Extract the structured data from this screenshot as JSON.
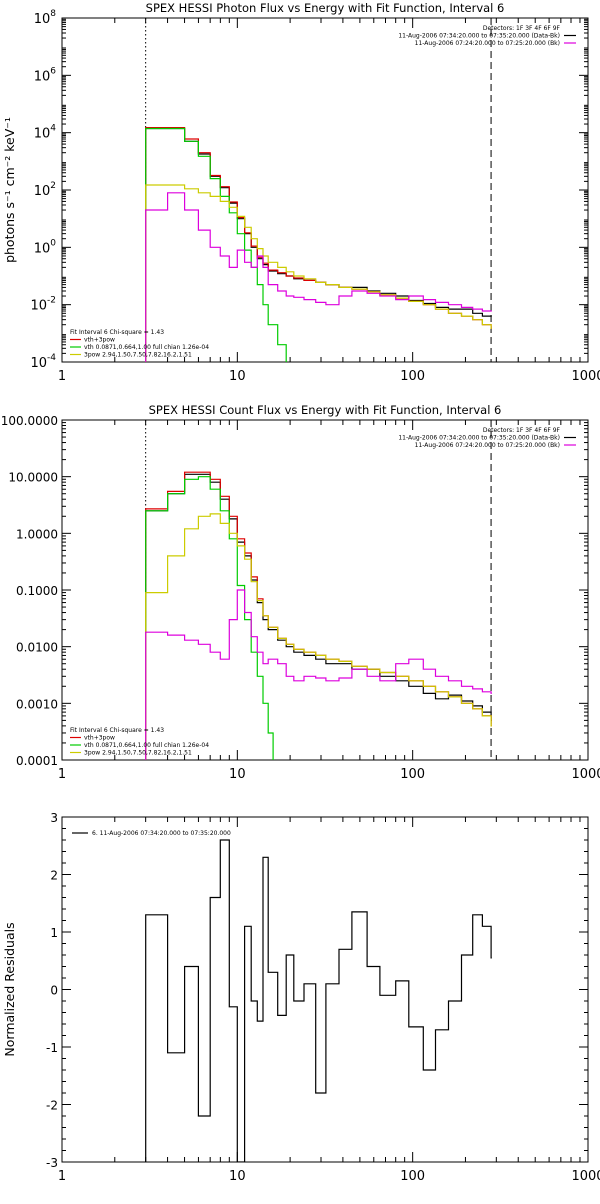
{
  "chart_data": [
    {
      "type": "line",
      "title": "SPEX HESSI Photon Flux vs Energy with Fit Function, Interval 6",
      "ylabel": "photons s⁻¹ cm⁻² keV⁻¹",
      "xscale": "log",
      "yscale": "log",
      "xlim": [
        1,
        1000
      ],
      "ylim": [
        0.0001,
        100000000
      ],
      "x_ticks": [
        1,
        10,
        100,
        1000
      ],
      "x_tick_labels": [
        "1",
        "10",
        "100",
        "1000"
      ],
      "y_ticks": [
        0.0001,
        0.01,
        1,
        100,
        10000,
        1000000,
        100000000
      ],
      "y_tick_labels": [
        {
          "base": "10",
          "exp": "-4"
        },
        {
          "base": "10",
          "exp": "-2"
        },
        {
          "base": "10",
          "exp": "0"
        },
        {
          "base": "10",
          "exp": "2"
        },
        {
          "base": "10",
          "exp": "4"
        },
        {
          "base": "10",
          "exp": "6"
        },
        {
          "base": "10",
          "exp": "8"
        }
      ],
      "vlines": [
        {
          "x": 3,
          "style": "dotted"
        },
        {
          "x": 280,
          "style": "dashed"
        }
      ],
      "legend_top": {
        "placement": "top-right",
        "lines": [
          {
            "text": "Detectors: 1F 3F 4F 6F 9F",
            "color": ""
          },
          {
            "text": "11-Aug-2006 07:34:20.000 to 07:35:20.000 (Data-Bk)",
            "color": "#000000"
          },
          {
            "text": "11-Aug-2006 07:24:20.000 to 07:25:20.000 (Bk)",
            "color": "#dd00dd"
          }
        ]
      },
      "legend_bottom": {
        "placement": "bottom-left",
        "lines": [
          {
            "text": "Fit Interval 6    Chi-square = 1.43",
            "color": ""
          },
          {
            "text": "vth+3pow",
            "color": "#dd0000"
          },
          {
            "text": "vth 0.0871,0.664,1.00  full chian 1.26e-04",
            "color": "#00cc00"
          },
          {
            "text": "3pow  2.94,1.50,7.50,7.82,16.2,1.51",
            "color": "#cccc00"
          }
        ]
      },
      "series": [
        {
          "color": "#000000",
          "x": [
            3,
            4,
            5,
            6,
            7,
            8,
            9,
            10,
            11,
            12,
            13,
            14,
            15,
            17,
            19,
            21,
            24,
            28,
            32,
            38,
            45,
            55,
            65,
            80,
            95,
            115,
            135,
            160,
            190,
            220,
            250,
            280
          ],
          "y": [
            14000,
            14000,
            5000,
            1800,
            300,
            120,
            35,
            10,
            3,
            1,
            0.4,
            0.25,
            0.15,
            0.12,
            0.1,
            0.08,
            0.07,
            0.06,
            0.05,
            0.04,
            0.04,
            0.03,
            0.025,
            0.02,
            0.014,
            0.011,
            0.008,
            0.007,
            0.007,
            0.005,
            0.004,
            0.004
          ]
        },
        {
          "color": "#dd0000",
          "x": [
            3,
            4,
            5,
            6,
            7,
            8,
            9,
            10,
            11,
            12,
            13,
            14,
            15,
            17,
            19,
            21,
            24,
            28,
            32,
            38,
            45,
            55,
            65,
            80,
            95,
            115,
            135,
            160,
            190,
            220,
            250,
            280
          ],
          "y": [
            15000,
            15000,
            6000,
            2000,
            320,
            130,
            38,
            11,
            3.2,
            1.1,
            0.45,
            0.28,
            0.16,
            0.13,
            0.1,
            0.085,
            0.07,
            0.06,
            0.05,
            0.04,
            0.035,
            0.028,
            0.022,
            0.017,
            0.013,
            0.01,
            0.007,
            0.005,
            0.004,
            0.003,
            0.002,
            0.0015
          ]
        },
        {
          "color": "#00cc00",
          "x": [
            3,
            4,
            5,
            6,
            7,
            8,
            9,
            10,
            11,
            12,
            13,
            14,
            15,
            17,
            19
          ],
          "y": [
            14000,
            14000,
            5000,
            1500,
            250,
            60,
            16,
            3,
            0.8,
            0.2,
            0.05,
            0.01,
            0.002,
            0.0004,
            0.0001
          ]
        },
        {
          "color": "#cccc00",
          "x": [
            3,
            4,
            5,
            6,
            7,
            8,
            9,
            10,
            11,
            12,
            13,
            14,
            15,
            17,
            19,
            21,
            24,
            28,
            32,
            38,
            45,
            55,
            65,
            80,
            95,
            115,
            135,
            160,
            190,
            220,
            250,
            280
          ],
          "y": [
            150,
            150,
            110,
            80,
            60,
            40,
            25,
            12,
            5,
            2,
            0.9,
            0.5,
            0.3,
            0.2,
            0.14,
            0.1,
            0.08,
            0.06,
            0.05,
            0.04,
            0.035,
            0.028,
            0.022,
            0.017,
            0.013,
            0.01,
            0.007,
            0.005,
            0.004,
            0.003,
            0.002,
            0.0015
          ]
        },
        {
          "color": "#dd00dd",
          "x": [
            3,
            4,
            5,
            6,
            7,
            8,
            9,
            10,
            11,
            12,
            13,
            14,
            15,
            17,
            19,
            21,
            24,
            28,
            32,
            38,
            45,
            55,
            65,
            80,
            95,
            115,
            135,
            160,
            190,
            220,
            250,
            280
          ],
          "y": [
            20,
            80,
            20,
            4,
            1,
            0.5,
            0.2,
            0.8,
            0.3,
            0.2,
            0.5,
            0.2,
            0.05,
            0.03,
            0.02,
            0.018,
            0.015,
            0.012,
            0.01,
            0.02,
            0.03,
            0.025,
            0.02,
            0.015,
            0.02,
            0.015,
            0.012,
            0.01,
            0.008,
            0.007,
            0.006,
            0.006
          ]
        }
      ]
    },
    {
      "type": "line",
      "title": "SPEX HESSI Count Flux vs Energy with Fit Function, Interval 6",
      "xscale": "log",
      "yscale": "log",
      "xlim": [
        1,
        1000
      ],
      "ylim": [
        0.0001,
        100
      ],
      "x_ticks": [
        1,
        10,
        100,
        1000
      ],
      "x_tick_labels": [
        "1",
        "10",
        "100",
        "1000"
      ],
      "y_ticks": [
        0.0001,
        0.001,
        0.01,
        0.1,
        1,
        10,
        100
      ],
      "y_tick_labels": [
        "0.0001",
        "0.0010",
        "0.0100",
        "0.1000",
        "1.0000",
        "10.0000",
        "100.0000"
      ],
      "vlines": [
        {
          "x": 3,
          "style": "dotted"
        },
        {
          "x": 280,
          "style": "dashed"
        }
      ],
      "legend_top": {
        "placement": "top-right",
        "lines": [
          {
            "text": "Detectors: 1F 3F 4F 6F 9F",
            "color": ""
          },
          {
            "text": "11-Aug-2006 07:34:20.000 to 07:35:20.000 (Data-Bk)",
            "color": "#000000"
          },
          {
            "text": "11-Aug-2006 07:24:20.000 to 07:25:20.000 (Bk)",
            "color": "#dd00dd"
          }
        ]
      },
      "legend_bottom": {
        "placement": "bottom-left",
        "lines": [
          {
            "text": "Fit Interval 6    Chi-square = 1.43",
            "color": ""
          },
          {
            "text": "vth+3pow",
            "color": "#dd0000"
          },
          {
            "text": "vth 0.0871,0.664,1.00  full chian 1.26e-04",
            "color": "#00cc00"
          },
          {
            "text": "3pow  2.94,1.50,7.50,7.82,16.2,1.51",
            "color": "#cccc00"
          }
        ]
      },
      "series": [
        {
          "color": "#000000",
          "x": [
            3,
            4,
            5,
            6,
            7,
            8,
            9,
            10,
            11,
            12,
            13,
            14,
            15,
            17,
            19,
            21,
            24,
            28,
            32,
            38,
            45,
            55,
            65,
            80,
            95,
            115,
            135,
            160,
            190,
            220,
            250,
            280
          ],
          "y": [
            2.5,
            5,
            11,
            11,
            8,
            4,
            1.8,
            0.7,
            0.4,
            0.15,
            0.06,
            0.03,
            0.02,
            0.013,
            0.01,
            0.008,
            0.007,
            0.006,
            0.005,
            0.005,
            0.004,
            0.004,
            0.003,
            0.0025,
            0.002,
            0.0015,
            0.0012,
            0.0014,
            0.0011,
            0.0009,
            0.0007,
            0.0005
          ]
        },
        {
          "color": "#dd0000",
          "x": [
            3,
            4,
            5,
            6,
            7,
            8,
            9,
            10,
            11,
            12,
            13,
            14,
            15,
            17,
            19,
            21,
            24,
            28,
            32,
            38,
            45,
            55,
            65,
            80,
            95,
            115,
            135,
            160,
            190,
            220,
            250,
            280
          ],
          "y": [
            2.7,
            5.5,
            12,
            12,
            9,
            4.5,
            2,
            0.8,
            0.45,
            0.17,
            0.07,
            0.035,
            0.022,
            0.014,
            0.011,
            0.009,
            0.008,
            0.007,
            0.006,
            0.0055,
            0.0045,
            0.004,
            0.0035,
            0.003,
            0.0025,
            0.002,
            0.0016,
            0.0013,
            0.001,
            0.0008,
            0.0006,
            0.0004
          ]
        },
        {
          "color": "#00cc00",
          "x": [
            3,
            4,
            5,
            6,
            7,
            8,
            9,
            10,
            11,
            12,
            13,
            14,
            15,
            16
          ],
          "y": [
            2.5,
            5,
            9,
            10,
            6,
            2.5,
            0.8,
            0.12,
            0.03,
            0.008,
            0.003,
            0.001,
            0.0003,
            0.0001
          ]
        },
        {
          "color": "#cccc00",
          "x": [
            3,
            4,
            5,
            6,
            7,
            8,
            9,
            10,
            11,
            12,
            13,
            14,
            15,
            17,
            19,
            21,
            24,
            28,
            32,
            38,
            45,
            55,
            65,
            80,
            95,
            115,
            135,
            160,
            190,
            220,
            250,
            280
          ],
          "y": [
            0.09,
            0.4,
            1.2,
            2,
            2.2,
            1.5,
            1,
            0.6,
            0.35,
            0.14,
            0.065,
            0.035,
            0.022,
            0.014,
            0.011,
            0.009,
            0.008,
            0.007,
            0.006,
            0.0055,
            0.0045,
            0.004,
            0.0035,
            0.003,
            0.0025,
            0.002,
            0.0016,
            0.0013,
            0.001,
            0.0008,
            0.0006,
            0.0004
          ]
        },
        {
          "color": "#dd00dd",
          "x": [
            3,
            4,
            5,
            6,
            7,
            8,
            9,
            10,
            11,
            12,
            13,
            14,
            15,
            17,
            19,
            21,
            24,
            28,
            32,
            38,
            45,
            55,
            65,
            80,
            95,
            115,
            135,
            160,
            190,
            220,
            250,
            280
          ],
          "y": [
            0.018,
            0.016,
            0.013,
            0.011,
            0.008,
            0.006,
            0.03,
            0.1,
            0.04,
            0.015,
            0.008,
            0.005,
            0.006,
            0.005,
            0.003,
            0.0025,
            0.003,
            0.0028,
            0.0025,
            0.0028,
            0.004,
            0.003,
            0.0025,
            0.005,
            0.006,
            0.004,
            0.003,
            0.0025,
            0.002,
            0.0018,
            0.0016,
            0.0015
          ]
        }
      ]
    },
    {
      "type": "line",
      "title": "",
      "ylabel": "Normalized Residuals",
      "xscale": "log",
      "yscale": "linear",
      "xlim": [
        1,
        1000
      ],
      "ylim": [
        -3,
        3
      ],
      "x_ticks": [
        1,
        10,
        100,
        1000
      ],
      "x_tick_labels": [
        "1",
        "10",
        "100",
        "1000"
      ],
      "y_ticks": [
        -3,
        -2,
        -1,
        0,
        1,
        2,
        3
      ],
      "y_tick_labels": [
        "-3",
        "-2",
        "-1",
        "0",
        "1",
        "2",
        "3"
      ],
      "legend_top": {
        "placement": "top-left",
        "lines": [
          {
            "text": "6. 11-Aug-2006 07:34:20.000 to 07:35:20.000",
            "color": "#000000"
          }
        ]
      },
      "series": [
        {
          "color": "#000000",
          "x": [
            3,
            4,
            5,
            6,
            7,
            8,
            9,
            10,
            11,
            12,
            13,
            14,
            15,
            17,
            19,
            21,
            24,
            28,
            32,
            38,
            45,
            55,
            65,
            80,
            95,
            115,
            135,
            160,
            190,
            220,
            250,
            280
          ],
          "y": [
            1.3,
            -1.1,
            0.4,
            -2.2,
            1.6,
            2.6,
            -0.3,
            -3,
            1.1,
            -0.2,
            -0.55,
            2.3,
            0.3,
            -0.45,
            0.6,
            -0.2,
            0.1,
            -1.8,
            0.1,
            0.7,
            1.35,
            0.4,
            -0.1,
            0.15,
            -0.65,
            -1.4,
            -0.7,
            -0.2,
            0.6,
            1.3,
            1.1,
            0.55
          ]
        }
      ]
    }
  ]
}
